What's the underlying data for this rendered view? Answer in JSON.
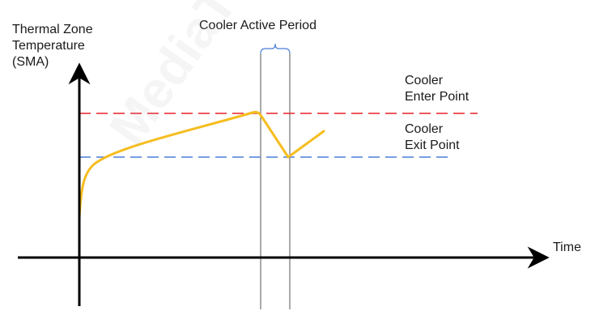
{
  "labels": {
    "y_axis_line1": "Thermal Zone",
    "y_axis_line2": "Temperature",
    "y_axis_line3": "(SMA)",
    "x_axis": "Time",
    "period": "Cooler Active Period",
    "enter_line1": "Cooler",
    "enter_line2": "Enter Point",
    "exit_line1": "Cooler",
    "exit_line2": "Exit Point"
  },
  "watermark": "MediaTek Confidential tinno.com",
  "colors": {
    "curve": "#f5bd1f",
    "enter_line": "#e8202a",
    "exit_line": "#4a7fd8",
    "axis": "#000000",
    "period_box": "#555555"
  }
}
